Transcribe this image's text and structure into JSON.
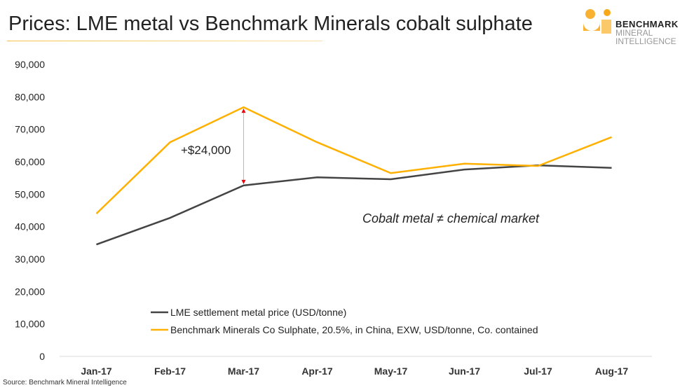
{
  "header": {
    "title": "Prices: LME metal vs Benchmark Minerals cobalt sulphate"
  },
  "logo": {
    "line1": "BENCHMARK",
    "line2": "MINERAL",
    "line3": "INTELLIGENCE"
  },
  "source": "Source: Benchmark Mineral Intelligence",
  "chart_data": {
    "type": "line",
    "title": "Prices: LME metal vs Benchmark Minerals cobalt sulphate",
    "categories": [
      "Jan-17",
      "Feb-17",
      "Mar-17",
      "Apr-17",
      "May-17",
      "Jun-17",
      "Jul-17",
      "Aug-17"
    ],
    "ylim": [
      0,
      90000
    ],
    "yticks": [
      "0",
      "10,000",
      "20,000",
      "30,000",
      "40,000",
      "50,000",
      "60,000",
      "70,000",
      "80,000",
      "90,000"
    ],
    "series": [
      {
        "name": "LME settlement metal price (USD/tonne)",
        "color": "#444444",
        "values": [
          34500,
          42700,
          52700,
          55200,
          54600,
          57600,
          58900,
          58100
        ]
      },
      {
        "name": "Benchmark Minerals Co Sulphate, 20.5%, in China, EXW, USD/tonne, Co. contained",
        "color": "#FFB000",
        "values": [
          44000,
          66000,
          76800,
          66000,
          56500,
          59400,
          58700,
          67600
        ]
      }
    ],
    "annotations": [
      {
        "text": "+$24,000",
        "category": "Mar-17",
        "color": "#e8000b"
      },
      {
        "text": "Cobalt metal ≠ chemical market"
      }
    ],
    "legend": "bottom-left, inside plot",
    "grid": false
  }
}
